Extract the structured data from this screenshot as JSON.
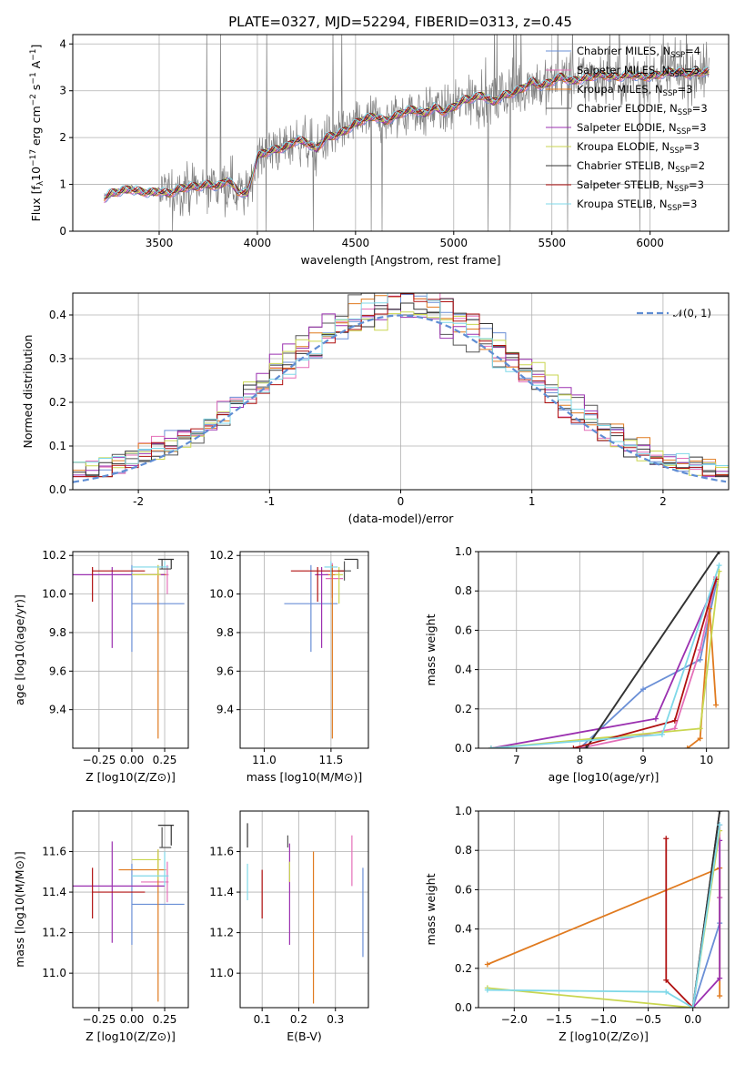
{
  "figure_title": "PLATE=0327, MJD=52294, FIBERID=0313, z=0.45",
  "colors": {
    "Chabrier MILES": "#6a8fd6",
    "Salpeter MILES": "#e46fb8",
    "Kroupa MILES": "#e07a1f",
    "Chabrier ELODIE": "#555555",
    "Salpeter ELODIE": "#9b30b0",
    "Kroupa ELODIE": "#c9d650",
    "Chabrier STELIB": "#333333",
    "Salpeter STELIB": "#b01010",
    "Kroupa STELIB": "#7fd8e8",
    "data": "#808080",
    "gauss": "#5f8dd3"
  },
  "chart_data": [
    {
      "id": "spectrum",
      "type": "line",
      "title": "PLATE=0327, MJD=52294, FIBERID=0313, z=0.45",
      "xlabel": "wavelength [Angstrom, rest frame]",
      "ylabel": "Flux [f_λ 10^-17 erg cm^-2 s^-1 A^-1]",
      "xlim": [
        3060,
        6400
      ],
      "ylim": [
        0,
        4.2
      ],
      "xticks": [
        3500,
        4000,
        4500,
        5000,
        5500,
        6000
      ],
      "yticks": [
        0,
        1,
        2,
        3,
        4
      ],
      "legend_position": "top-right",
      "legend": [
        "Chabrier MILES, N_SSP=4",
        "Salpeter MILES, N_SSP=3",
        "Kroupa MILES, N_SSP=3",
        "Chabrier ELODIE, N_SSP=3",
        "Salpeter ELODIE, N_SSP=3",
        "Kroupa ELODIE, N_SSP=3",
        "Chabrier STELIB, N_SSP=2",
        "Salpeter STELIB, N_SSP=3",
        "Kroupa STELIB, N_SSP=3"
      ],
      "model_continuum": {
        "x": [
          3220,
          3250,
          3300,
          3350,
          3400,
          3450,
          3500,
          3550,
          3600,
          3650,
          3700,
          3750,
          3800,
          3850,
          3900,
          3950,
          4000,
          4050,
          4100,
          4150,
          4200,
          4250,
          4300,
          4350,
          4400,
          4450,
          4500,
          4550,
          4600,
          4650,
          4700,
          4750,
          4800,
          4850,
          4900,
          4950,
          5000,
          5050,
          5100,
          5150,
          5200,
          5250,
          5300,
          5350,
          5400,
          5450,
          5500,
          5550,
          5600,
          5650,
          5700,
          5750,
          5800,
          5850,
          5900,
          5950,
          6000,
          6050,
          6100,
          6150,
          6200,
          6250,
          6300
        ],
        "y": [
          0.7,
          0.8,
          0.85,
          0.9,
          0.85,
          0.82,
          0.85,
          0.8,
          0.9,
          0.95,
          0.95,
          1.0,
          0.95,
          1.1,
          0.85,
          0.8,
          1.6,
          1.7,
          1.75,
          1.8,
          1.95,
          1.9,
          1.75,
          2.0,
          2.05,
          2.15,
          2.3,
          2.4,
          2.45,
          2.35,
          2.45,
          2.55,
          2.6,
          2.5,
          2.65,
          2.55,
          2.65,
          2.8,
          2.85,
          2.9,
          2.75,
          2.9,
          2.95,
          3.05,
          3.2,
          3.1,
          3.2,
          3.3,
          3.2,
          3.25,
          3.3,
          3.35,
          3.3,
          3.3,
          3.35,
          3.3,
          3.3,
          3.35,
          3.4,
          3.4,
          3.35,
          3.4,
          3.4
        ]
      }
    },
    {
      "id": "residuals",
      "type": "step",
      "xlabel": "(data-model)/error",
      "ylabel": "Normed distribution",
      "xlim": [
        -2.5,
        2.5
      ],
      "ylim": [
        0,
        0.45
      ],
      "xticks": [
        -2,
        -1,
        0,
        1,
        2
      ],
      "yticks": [
        0.0,
        0.1,
        0.2,
        0.3,
        0.4
      ],
      "legend": [
        "𝒩(0, 1)"
      ],
      "bin_width": 0.1
    },
    {
      "id": "age_vs_Z",
      "type": "errorbar",
      "xlabel": "Z [log10(Z/Z⊙)]",
      "ylabel": "age  [log10(age/yr)]",
      "xlim": [
        -0.45,
        0.43
      ],
      "ylim": [
        9.2,
        10.22
      ],
      "xticks": [
        -0.25,
        0.0,
        0.25
      ],
      "yticks": [
        9.4,
        9.6,
        9.8,
        10.0,
        10.2
      ],
      "points": [
        {
          "model": "Chabrier MILES",
          "x": 0.0,
          "y": 9.95,
          "xerr": [
            0.0,
            0.4
          ],
          "yerr": [
            0.25,
            0.2
          ]
        },
        {
          "model": "Salpeter MILES",
          "x": 0.27,
          "y": 10.1,
          "xerr": [
            0.2,
            0.01
          ],
          "yerr": [
            0.1,
            0.05
          ]
        },
        {
          "model": "Kroupa MILES",
          "x": 0.2,
          "y": 10.1,
          "xerr": [
            0.2,
            0.06
          ],
          "yerr": [
            0.85,
            0.05
          ]
        },
        {
          "model": "Chabrier ELODIE",
          "x": 0.23,
          "y": 10.13,
          "xerr": [
            0.02,
            0.07
          ],
          "yerr": [
            0.0,
            0.05
          ]
        },
        {
          "model": "Salpeter ELODIE",
          "x": -0.15,
          "y": 10.1,
          "xerr": [
            0.4,
            0.4
          ],
          "yerr": [
            0.38,
            0.04
          ]
        },
        {
          "model": "Kroupa ELODIE",
          "x": 0.2,
          "y": 10.1,
          "xerr": [
            0.2,
            0.02
          ],
          "yerr": [
            0.0,
            0.05
          ]
        },
        {
          "model": "Chabrier STELIB",
          "x": 0.3,
          "y": 10.18,
          "xerr": [
            0.1,
            0.02
          ],
          "yerr": [
            0.05,
            0.0
          ]
        },
        {
          "model": "Salpeter STELIB",
          "x": -0.3,
          "y": 10.12,
          "xerr": [
            0.0,
            0.4
          ],
          "yerr": [
            0.16,
            0.02
          ]
        },
        {
          "model": "Kroupa STELIB",
          "x": 0.25,
          "y": 10.14,
          "xerr": [
            0.25,
            0.03
          ],
          "yerr": [
            0.0,
            0.03
          ]
        }
      ]
    },
    {
      "id": "age_vs_mass",
      "type": "errorbar",
      "xlabel": "mass [log10(M/M⊙)]",
      "ylabel": "",
      "xlim": [
        10.82,
        11.78
      ],
      "ylim": [
        9.2,
        10.22
      ],
      "xticks": [
        11.0,
        11.5
      ],
      "yticks": [
        9.4,
        9.6,
        9.8,
        10.0,
        10.2
      ],
      "points": [
        {
          "model": "Chabrier MILES",
          "x": 11.35,
          "y": 9.95,
          "xerr": [
            0.2,
            0.2
          ],
          "yerr": [
            0.25,
            0.2
          ]
        },
        {
          "model": "Salpeter MILES",
          "x": 11.51,
          "y": 10.08,
          "xerr": [
            0.05,
            0.08
          ],
          "yerr": [
            0.1,
            0.08
          ]
        },
        {
          "model": "Kroupa MILES",
          "x": 11.51,
          "y": 10.1,
          "xerr": [
            0.05,
            0.05
          ],
          "yerr": [
            0.85,
            0.05
          ]
        },
        {
          "model": "Chabrier ELODIE",
          "x": 11.6,
          "y": 10.12,
          "xerr": [
            0.05,
            0.05
          ],
          "yerr": [
            0.05,
            0.05
          ]
        },
        {
          "model": "Salpeter ELODIE",
          "x": 11.43,
          "y": 10.1,
          "xerr": [
            0.05,
            0.05
          ],
          "yerr": [
            0.38,
            0.04
          ]
        },
        {
          "model": "Kroupa ELODIE",
          "x": 11.56,
          "y": 10.1,
          "xerr": [
            0.03,
            0.03
          ],
          "yerr": [
            0.15,
            0.04
          ]
        },
        {
          "model": "Chabrier STELIB",
          "x": 11.7,
          "y": 10.18,
          "xerr": [
            0.1,
            0.0
          ],
          "yerr": [
            0.05,
            0.0
          ]
        },
        {
          "model": "Salpeter STELIB",
          "x": 11.4,
          "y": 10.12,
          "xerr": [
            0.2,
            0.2
          ],
          "yerr": [
            0.16,
            0.02
          ]
        },
        {
          "model": "Kroupa STELIB",
          "x": 11.5,
          "y": 10.14,
          "xerr": [
            0.05,
            0.05
          ],
          "yerr": [
            0.05,
            0.03
          ]
        }
      ]
    },
    {
      "id": "weight_vs_age",
      "type": "line",
      "xlabel": "age  [log10(age/yr)]",
      "ylabel": "mass weight",
      "xlim": [
        6.4,
        10.35
      ],
      "ylim": [
        0,
        1.0
      ],
      "xticks": [
        7,
        8,
        9,
        10
      ],
      "yticks": [
        0.0,
        0.2,
        0.4,
        0.6,
        0.8,
        1.0
      ],
      "series": [
        {
          "model": "Chabrier MILES",
          "x": [
            8.0,
            9.0,
            9.9,
            10.15
          ],
          "y": [
            0.0,
            0.3,
            0.45,
            0.83
          ]
        },
        {
          "model": "Salpeter MILES",
          "x": [
            8.0,
            9.5,
            9.9,
            10.15
          ],
          "y": [
            0.0,
            0.1,
            0.5,
            0.87
          ]
        },
        {
          "model": "Kroupa MILES",
          "x": [
            9.7,
            9.9,
            10.05,
            10.15
          ],
          "y": [
            0.0,
            0.05,
            0.71,
            0.22
          ]
        },
        {
          "model": "Chabrier ELODIE",
          "x": [
            8.1,
            10.2
          ],
          "y": [
            0.0,
            1.0
          ]
        },
        {
          "model": "Salpeter ELODIE",
          "x": [
            6.6,
            9.2,
            10.15
          ],
          "y": [
            0.0,
            0.15,
            0.85
          ]
        },
        {
          "model": "Kroupa ELODIE",
          "x": [
            6.6,
            9.9,
            10.2
          ],
          "y": [
            0.0,
            0.1,
            0.9
          ]
        },
        {
          "model": "Chabrier STELIB",
          "x": [
            8.1,
            10.2
          ],
          "y": [
            0.0,
            1.0
          ]
        },
        {
          "model": "Salpeter STELIB",
          "x": [
            7.9,
            9.5,
            10.15
          ],
          "y": [
            0.0,
            0.14,
            0.86
          ]
        },
        {
          "model": "Kroupa STELIB",
          "x": [
            6.6,
            9.3,
            10.2
          ],
          "y": [
            0.0,
            0.07,
            0.93
          ]
        }
      ]
    },
    {
      "id": "mass_vs_Z",
      "type": "errorbar",
      "xlabel": "Z [log10(Z/Z⊙)]",
      "ylabel": "mass [log10(M/M⊙)]",
      "xlim": [
        -0.45,
        0.43
      ],
      "ylim": [
        10.83,
        11.8
      ],
      "xticks": [
        -0.25,
        0.0,
        0.25
      ],
      "yticks": [
        11.0,
        11.2,
        11.4,
        11.6
      ],
      "points": [
        {
          "model": "Chabrier MILES",
          "x": 0.0,
          "y": 11.34,
          "xerr": [
            0.0,
            0.4
          ],
          "yerr": [
            0.2,
            0.2
          ]
        },
        {
          "model": "Salpeter MILES",
          "x": 0.27,
          "y": 11.45,
          "xerr": [
            0.2,
            0.01
          ],
          "yerr": [
            0.1,
            0.1
          ]
        },
        {
          "model": "Kroupa MILES",
          "x": 0.2,
          "y": 11.51,
          "xerr": [
            0.3,
            0.06
          ],
          "yerr": [
            0.65,
            0.1
          ]
        },
        {
          "model": "Chabrier ELODIE",
          "x": 0.23,
          "y": 11.62,
          "xerr": [
            0.02,
            0.07
          ],
          "yerr": [
            0.0,
            0.1
          ]
        },
        {
          "model": "Salpeter ELODIE",
          "x": -0.15,
          "y": 11.43,
          "xerr": [
            0.4,
            0.4
          ],
          "yerr": [
            0.28,
            0.22
          ]
        },
        {
          "model": "Kroupa ELODIE",
          "x": 0.2,
          "y": 11.56,
          "xerr": [
            0.2,
            0.02
          ],
          "yerr": [
            0.1,
            0.05
          ]
        },
        {
          "model": "Chabrier STELIB",
          "x": 0.3,
          "y": 11.73,
          "xerr": [
            0.1,
            0.02
          ],
          "yerr": [
            0.1,
            0.0
          ]
        },
        {
          "model": "Salpeter STELIB",
          "x": -0.3,
          "y": 11.4,
          "xerr": [
            0.0,
            0.4
          ],
          "yerr": [
            0.13,
            0.12
          ]
        },
        {
          "model": "Kroupa STELIB",
          "x": 0.25,
          "y": 11.48,
          "xerr": [
            0.25,
            0.03
          ],
          "yerr": [
            0.05,
            0.12
          ]
        }
      ]
    },
    {
      "id": "mass_vs_EBV",
      "type": "errorbar",
      "xlabel": "E(B-V)",
      "ylabel": "",
      "xlim": [
        0.04,
        0.39
      ],
      "ylim": [
        10.83,
        11.8
      ],
      "xticks": [
        0.1,
        0.2,
        0.3
      ],
      "yticks": [
        11.0,
        11.2,
        11.4,
        11.6
      ],
      "points": [
        {
          "model": "Chabrier MILES",
          "x": 0.375,
          "y": 11.3,
          "xerr": [
            0.0,
            0.0
          ],
          "yerr": [
            0.22,
            0.22
          ]
        },
        {
          "model": "Salpeter MILES",
          "x": 0.345,
          "y": 11.55,
          "xerr": [
            0.0,
            0.0
          ],
          "yerr": [
            0.12,
            0.13
          ]
        },
        {
          "model": "Kroupa MILES",
          "x": 0.24,
          "y": 11.22,
          "xerr": [
            0.0,
            0.0
          ],
          "yerr": [
            0.37,
            0.38
          ]
        },
        {
          "model": "Chabrier ELODIE",
          "x": 0.17,
          "y": 11.62,
          "xerr": [
            0.0,
            0.0
          ],
          "yerr": [
            0.0,
            0.06
          ]
        },
        {
          "model": "Salpeter ELODIE",
          "x": 0.175,
          "y": 11.39,
          "xerr": [
            0.0,
            0.0
          ],
          "yerr": [
            0.25,
            0.25
          ]
        },
        {
          "model": "Kroupa ELODIE",
          "x": 0.175,
          "y": 11.5,
          "xerr": [
            0.0,
            0.0
          ],
          "yerr": [
            0.05,
            0.05
          ]
        },
        {
          "model": "Chabrier STELIB",
          "x": 0.06,
          "y": 11.68,
          "xerr": [
            0.0,
            0.0
          ],
          "yerr": [
            0.06,
            0.06
          ]
        },
        {
          "model": "Salpeter STELIB",
          "x": 0.1,
          "y": 11.39,
          "xerr": [
            0.0,
            0.0
          ],
          "yerr": [
            0.12,
            0.12
          ]
        },
        {
          "model": "Kroupa STELIB",
          "x": 0.06,
          "y": 11.45,
          "xerr": [
            0.0,
            0.0
          ],
          "yerr": [
            0.09,
            0.09
          ]
        }
      ]
    },
    {
      "id": "weight_vs_Z",
      "type": "line",
      "xlabel": "Z [log10(Z/Z⊙)]",
      "ylabel": "mass weight",
      "xlim": [
        -2.4,
        0.4
      ],
      "ylim": [
        0,
        1.0
      ],
      "xticks": [
        -2.0,
        -1.5,
        -1.0,
        -0.5,
        0.0
      ],
      "yticks": [
        0.0,
        0.2,
        0.4,
        0.6,
        0.8,
        1.0
      ],
      "series": [
        {
          "model": "Chabrier MILES",
          "x": [
            0.0,
            0.3,
            0.3
          ],
          "y": [
            0.0,
            0.43,
            0.56
          ]
        },
        {
          "model": "Salpeter MILES",
          "x": [
            0.0,
            0.3,
            0.3
          ],
          "y": [
            0.0,
            0.93,
            0.56
          ]
        },
        {
          "model": "Kroupa MILES",
          "x": [
            -2.3,
            0.3,
            0.3
          ],
          "y": [
            0.22,
            0.71,
            0.06
          ]
        },
        {
          "model": "Chabrier ELODIE",
          "x": [
            0.0,
            0.3
          ],
          "y": [
            0.0,
            1.0
          ]
        },
        {
          "model": "Salpeter ELODIE",
          "x": [
            0.0,
            0.3,
            0.3
          ],
          "y": [
            0.0,
            0.15,
            0.85
          ]
        },
        {
          "model": "Kroupa ELODIE",
          "x": [
            -2.3,
            0.0,
            0.3
          ],
          "y": [
            0.1,
            0.0,
            0.9
          ]
        },
        {
          "model": "Chabrier STELIB",
          "x": [
            0.0,
            0.3
          ],
          "y": [
            0.0,
            1.0
          ]
        },
        {
          "model": "Salpeter STELIB",
          "x": [
            -0.3,
            -0.3,
            0.0
          ],
          "y": [
            0.86,
            0.14,
            0.0
          ]
        },
        {
          "model": "Kroupa STELIB",
          "x": [
            -2.3,
            -0.3,
            0.0,
            0.3
          ],
          "y": [
            0.09,
            0.08,
            0.0,
            0.93
          ]
        }
      ]
    }
  ]
}
